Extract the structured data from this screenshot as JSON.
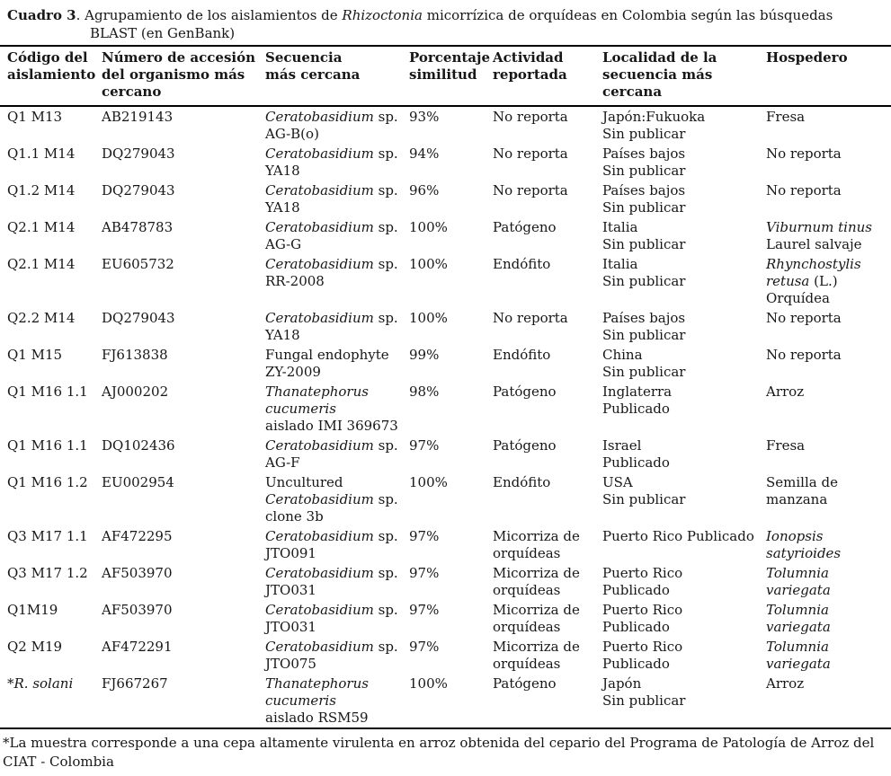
{
  "colors": {
    "background": "#ffffff",
    "text": "#171717",
    "rule": "#000000"
  },
  "title": {
    "bold": "Cuadro 3",
    "rest1": ". Agrupamiento de los aislamientos de ",
    "italic_word": "Rhizoctonia",
    "rest2": " micorrízica de orquídeas en Colombia según las búsquedas",
    "line2": "BLAST (en GenBank)"
  },
  "table": {
    "columns": [
      "Código del\naislamiento",
      "Número de accesión\ndel organismo más\ncercano",
      "Secuencia\nmás cercana",
      "Porcentaje\nsimilitud",
      "Actividad\nreportada",
      "Localidad de la\nsecuencia más\ncercana",
      "Hospedero"
    ],
    "rows": [
      [
        [
          [
            [
              "Q1 M13",
              0
            ]
          ]
        ],
        [
          [
            [
              "AB219143",
              0
            ]
          ]
        ],
        [
          [
            [
              "Ceratobasidium",
              1
            ],
            [
              " sp.",
              0
            ]
          ],
          [
            [
              "AG-B(o)",
              0
            ]
          ]
        ],
        [
          [
            [
              "93%",
              0
            ]
          ]
        ],
        [
          [
            [
              "No reporta",
              0
            ]
          ]
        ],
        [
          [
            [
              "Japón:Fukuoka",
              0
            ]
          ],
          [
            [
              "Sin publicar",
              0
            ]
          ]
        ],
        [
          [
            [
              "Fresa",
              0
            ]
          ]
        ]
      ],
      [
        [
          [
            [
              "Q1.1 M14",
              0
            ]
          ]
        ],
        [
          [
            [
              "DQ279043",
              0
            ]
          ]
        ],
        [
          [
            [
              "Ceratobasidium",
              1
            ],
            [
              " sp.",
              0
            ]
          ],
          [
            [
              "YA18",
              0
            ]
          ]
        ],
        [
          [
            [
              "94%",
              0
            ]
          ]
        ],
        [
          [
            [
              "No reporta",
              0
            ]
          ]
        ],
        [
          [
            [
              "Países bajos",
              0
            ]
          ],
          [
            [
              "Sin publicar",
              0
            ]
          ]
        ],
        [
          [
            [
              "No reporta",
              0
            ]
          ]
        ]
      ],
      [
        [
          [
            [
              "Q1.2 M14",
              0
            ]
          ]
        ],
        [
          [
            [
              "DQ279043",
              0
            ]
          ]
        ],
        [
          [
            [
              "Ceratobasidium",
              1
            ],
            [
              " sp.",
              0
            ]
          ],
          [
            [
              "YA18",
              0
            ]
          ]
        ],
        [
          [
            [
              "96%",
              0
            ]
          ]
        ],
        [
          [
            [
              "No reporta",
              0
            ]
          ]
        ],
        [
          [
            [
              "Países bajos",
              0
            ]
          ],
          [
            [
              "Sin publicar",
              0
            ]
          ]
        ],
        [
          [
            [
              "No reporta",
              0
            ]
          ]
        ]
      ],
      [
        [
          [
            [
              "Q2.1 M14",
              0
            ]
          ]
        ],
        [
          [
            [
              "AB478783",
              0
            ]
          ]
        ],
        [
          [
            [
              "Ceratobasidium",
              1
            ],
            [
              " sp.",
              0
            ]
          ],
          [
            [
              "AG-G",
              0
            ]
          ]
        ],
        [
          [
            [
              "100%",
              0
            ]
          ]
        ],
        [
          [
            [
              "Patógeno",
              0
            ]
          ]
        ],
        [
          [
            [
              "Italia",
              0
            ]
          ],
          [
            [
              "Sin publicar",
              0
            ]
          ]
        ],
        [
          [
            [
              "Viburnum tinus",
              1
            ]
          ],
          [
            [
              "Laurel salvaje",
              0
            ]
          ]
        ]
      ],
      [
        [
          [
            [
              "Q2.1 M14",
              0
            ]
          ]
        ],
        [
          [
            [
              "EU605732",
              0
            ]
          ]
        ],
        [
          [
            [
              "Ceratobasidium",
              1
            ],
            [
              " sp.",
              0
            ]
          ],
          [
            [
              "RR-2008",
              0
            ]
          ]
        ],
        [
          [
            [
              "100%",
              0
            ]
          ]
        ],
        [
          [
            [
              "Endófito",
              0
            ]
          ]
        ],
        [
          [
            [
              "Italia",
              0
            ]
          ],
          [
            [
              "Sin publicar",
              0
            ]
          ]
        ],
        [
          [
            [
              "Rhynchostylis",
              1
            ]
          ],
          [
            [
              "retusa",
              1
            ],
            [
              " (L.)",
              0
            ]
          ],
          [
            [
              "Orquídea",
              0
            ]
          ]
        ]
      ],
      [
        [
          [
            [
              "Q2.2 M14",
              0
            ]
          ]
        ],
        [
          [
            [
              "DQ279043",
              0
            ]
          ]
        ],
        [
          [
            [
              "Ceratobasidium",
              1
            ],
            [
              " sp.",
              0
            ]
          ],
          [
            [
              "YA18",
              0
            ]
          ]
        ],
        [
          [
            [
              "100%",
              0
            ]
          ]
        ],
        [
          [
            [
              "No reporta",
              0
            ]
          ]
        ],
        [
          [
            [
              "Países bajos",
              0
            ]
          ],
          [
            [
              "Sin publicar",
              0
            ]
          ]
        ],
        [
          [
            [
              "No reporta",
              0
            ]
          ]
        ]
      ],
      [
        [
          [
            [
              "Q1 M15",
              0
            ]
          ]
        ],
        [
          [
            [
              "FJ613838",
              0
            ]
          ]
        ],
        [
          [
            [
              "Fungal endophyte",
              0
            ]
          ],
          [
            [
              "ZY-2009",
              0
            ]
          ]
        ],
        [
          [
            [
              "99%",
              0
            ]
          ]
        ],
        [
          [
            [
              "Endófito",
              0
            ]
          ]
        ],
        [
          [
            [
              "China",
              0
            ]
          ],
          [
            [
              "Sin publicar",
              0
            ]
          ]
        ],
        [
          [
            [
              "No reporta",
              0
            ]
          ]
        ]
      ],
      [
        [
          [
            [
              "Q1 M16 1.1",
              0
            ]
          ]
        ],
        [
          [
            [
              "AJ000202",
              0
            ]
          ]
        ],
        [
          [
            [
              "Thanatephorus",
              1
            ]
          ],
          [
            [
              "cucumeris",
              1
            ]
          ],
          [
            [
              "aislado IMI 369673",
              0
            ]
          ]
        ],
        [
          [
            [
              "98%",
              0
            ]
          ]
        ],
        [
          [
            [
              "Patógeno",
              0
            ]
          ]
        ],
        [
          [
            [
              "Inglaterra",
              0
            ]
          ],
          [
            [
              "Publicado",
              0
            ]
          ]
        ],
        [
          [
            [
              "Arroz",
              0
            ]
          ]
        ]
      ],
      [
        [
          [
            [
              "Q1 M16 1.1",
              0
            ]
          ]
        ],
        [
          [
            [
              "DQ102436",
              0
            ]
          ]
        ],
        [
          [
            [
              "Ceratobasidium",
              1
            ],
            [
              " sp.",
              0
            ]
          ],
          [
            [
              "AG-F",
              0
            ]
          ]
        ],
        [
          [
            [
              "97%",
              0
            ]
          ]
        ],
        [
          [
            [
              "Patógeno",
              0
            ]
          ]
        ],
        [
          [
            [
              "Israel",
              0
            ]
          ],
          [
            [
              "Publicado",
              0
            ]
          ]
        ],
        [
          [
            [
              "Fresa",
              0
            ]
          ]
        ]
      ],
      [
        [
          [
            [
              "Q1 M16 1.2",
              0
            ]
          ]
        ],
        [
          [
            [
              "EU002954",
              0
            ]
          ]
        ],
        [
          [
            [
              "Uncultured",
              0
            ]
          ],
          [
            [
              "Ceratobasidium",
              1
            ],
            [
              " sp.",
              0
            ]
          ],
          [
            [
              "clone 3b",
              0
            ]
          ]
        ],
        [
          [
            [
              "100%",
              0
            ]
          ]
        ],
        [
          [
            [
              "Endófito",
              0
            ]
          ]
        ],
        [
          [
            [
              "USA",
              0
            ]
          ],
          [
            [
              "Sin publicar",
              0
            ]
          ]
        ],
        [
          [
            [
              "Semilla de",
              0
            ]
          ],
          [
            [
              "manzana",
              0
            ]
          ]
        ]
      ],
      [
        [
          [
            [
              "Q3 M17 1.1",
              0
            ]
          ]
        ],
        [
          [
            [
              "AF472295",
              0
            ]
          ]
        ],
        [
          [
            [
              "Ceratobasidium",
              1
            ],
            [
              " sp.",
              0
            ]
          ],
          [
            [
              "JTO091",
              0
            ]
          ]
        ],
        [
          [
            [
              "97%",
              0
            ]
          ]
        ],
        [
          [
            [
              "Micorriza de",
              0
            ]
          ],
          [
            [
              "orquídeas",
              0
            ]
          ]
        ],
        [
          [
            [
              "Puerto Rico Publicado",
              0
            ]
          ]
        ],
        [
          [
            [
              "Ionopsis",
              1
            ]
          ],
          [
            [
              "satyrioides",
              1
            ]
          ]
        ]
      ],
      [
        [
          [
            [
              "Q3 M17 1.2",
              0
            ]
          ]
        ],
        [
          [
            [
              "AF503970",
              0
            ]
          ]
        ],
        [
          [
            [
              "Ceratobasidium",
              1
            ],
            [
              " sp.",
              0
            ]
          ],
          [
            [
              "JTO031",
              0
            ]
          ]
        ],
        [
          [
            [
              "97%",
              0
            ]
          ]
        ],
        [
          [
            [
              "Micorriza de",
              0
            ]
          ],
          [
            [
              "orquídeas",
              0
            ]
          ]
        ],
        [
          [
            [
              "Puerto Rico",
              0
            ]
          ],
          [
            [
              "Publicado",
              0
            ]
          ]
        ],
        [
          [
            [
              "Tolumnia",
              1
            ]
          ],
          [
            [
              "variegata",
              1
            ]
          ]
        ]
      ],
      [
        [
          [
            [
              "Q1M19",
              0
            ]
          ]
        ],
        [
          [
            [
              "AF503970",
              0
            ]
          ]
        ],
        [
          [
            [
              "Ceratobasidium",
              1
            ],
            [
              " sp.",
              0
            ]
          ],
          [
            [
              "JTO031",
              0
            ]
          ]
        ],
        [
          [
            [
              "97%",
              0
            ]
          ]
        ],
        [
          [
            [
              "Micorriza de",
              0
            ]
          ],
          [
            [
              "orquídeas",
              0
            ]
          ]
        ],
        [
          [
            [
              "Puerto Rico",
              0
            ]
          ],
          [
            [
              "Publicado",
              0
            ]
          ]
        ],
        [
          [
            [
              "Tolumnia",
              1
            ]
          ],
          [
            [
              "variegata",
              1
            ]
          ]
        ]
      ],
      [
        [
          [
            [
              "Q2 M19",
              0
            ]
          ]
        ],
        [
          [
            [
              "AF472291",
              0
            ]
          ]
        ],
        [
          [
            [
              "Ceratobasidium",
              1
            ],
            [
              " sp.",
              0
            ]
          ],
          [
            [
              "JTO075",
              0
            ]
          ]
        ],
        [
          [
            [
              "97%",
              0
            ]
          ]
        ],
        [
          [
            [
              "Micorriza de",
              0
            ]
          ],
          [
            [
              "orquídeas",
              0
            ]
          ]
        ],
        [
          [
            [
              "Puerto Rico",
              0
            ]
          ],
          [
            [
              "Publicado",
              0
            ]
          ]
        ],
        [
          [
            [
              "Tolumnia",
              1
            ]
          ],
          [
            [
              "variegata",
              1
            ]
          ]
        ]
      ],
      [
        [
          [
            [
              "*",
              0
            ],
            [
              "R. solani",
              1
            ]
          ]
        ],
        [
          [
            [
              "FJ667267",
              0
            ]
          ]
        ],
        [
          [
            [
              "Thanatephorus",
              1
            ]
          ],
          [
            [
              "cucumeris",
              1
            ]
          ],
          [
            [
              "aislado RSM59",
              0
            ]
          ]
        ],
        [
          [
            [
              "100%",
              0
            ]
          ]
        ],
        [
          [
            [
              "Patógeno",
              0
            ]
          ]
        ],
        [
          [
            [
              "Japón",
              0
            ]
          ],
          [
            [
              "Sin publicar",
              0
            ]
          ]
        ],
        [
          [
            [
              "Arroz",
              0
            ]
          ]
        ]
      ]
    ]
  },
  "footnote": {
    "line1": "*La muestra corresponde a una cepa altamente virulenta en arroz obtenida del cepario del Programa de Patología de Arroz del",
    "line2": "CIAT - Colombia"
  }
}
